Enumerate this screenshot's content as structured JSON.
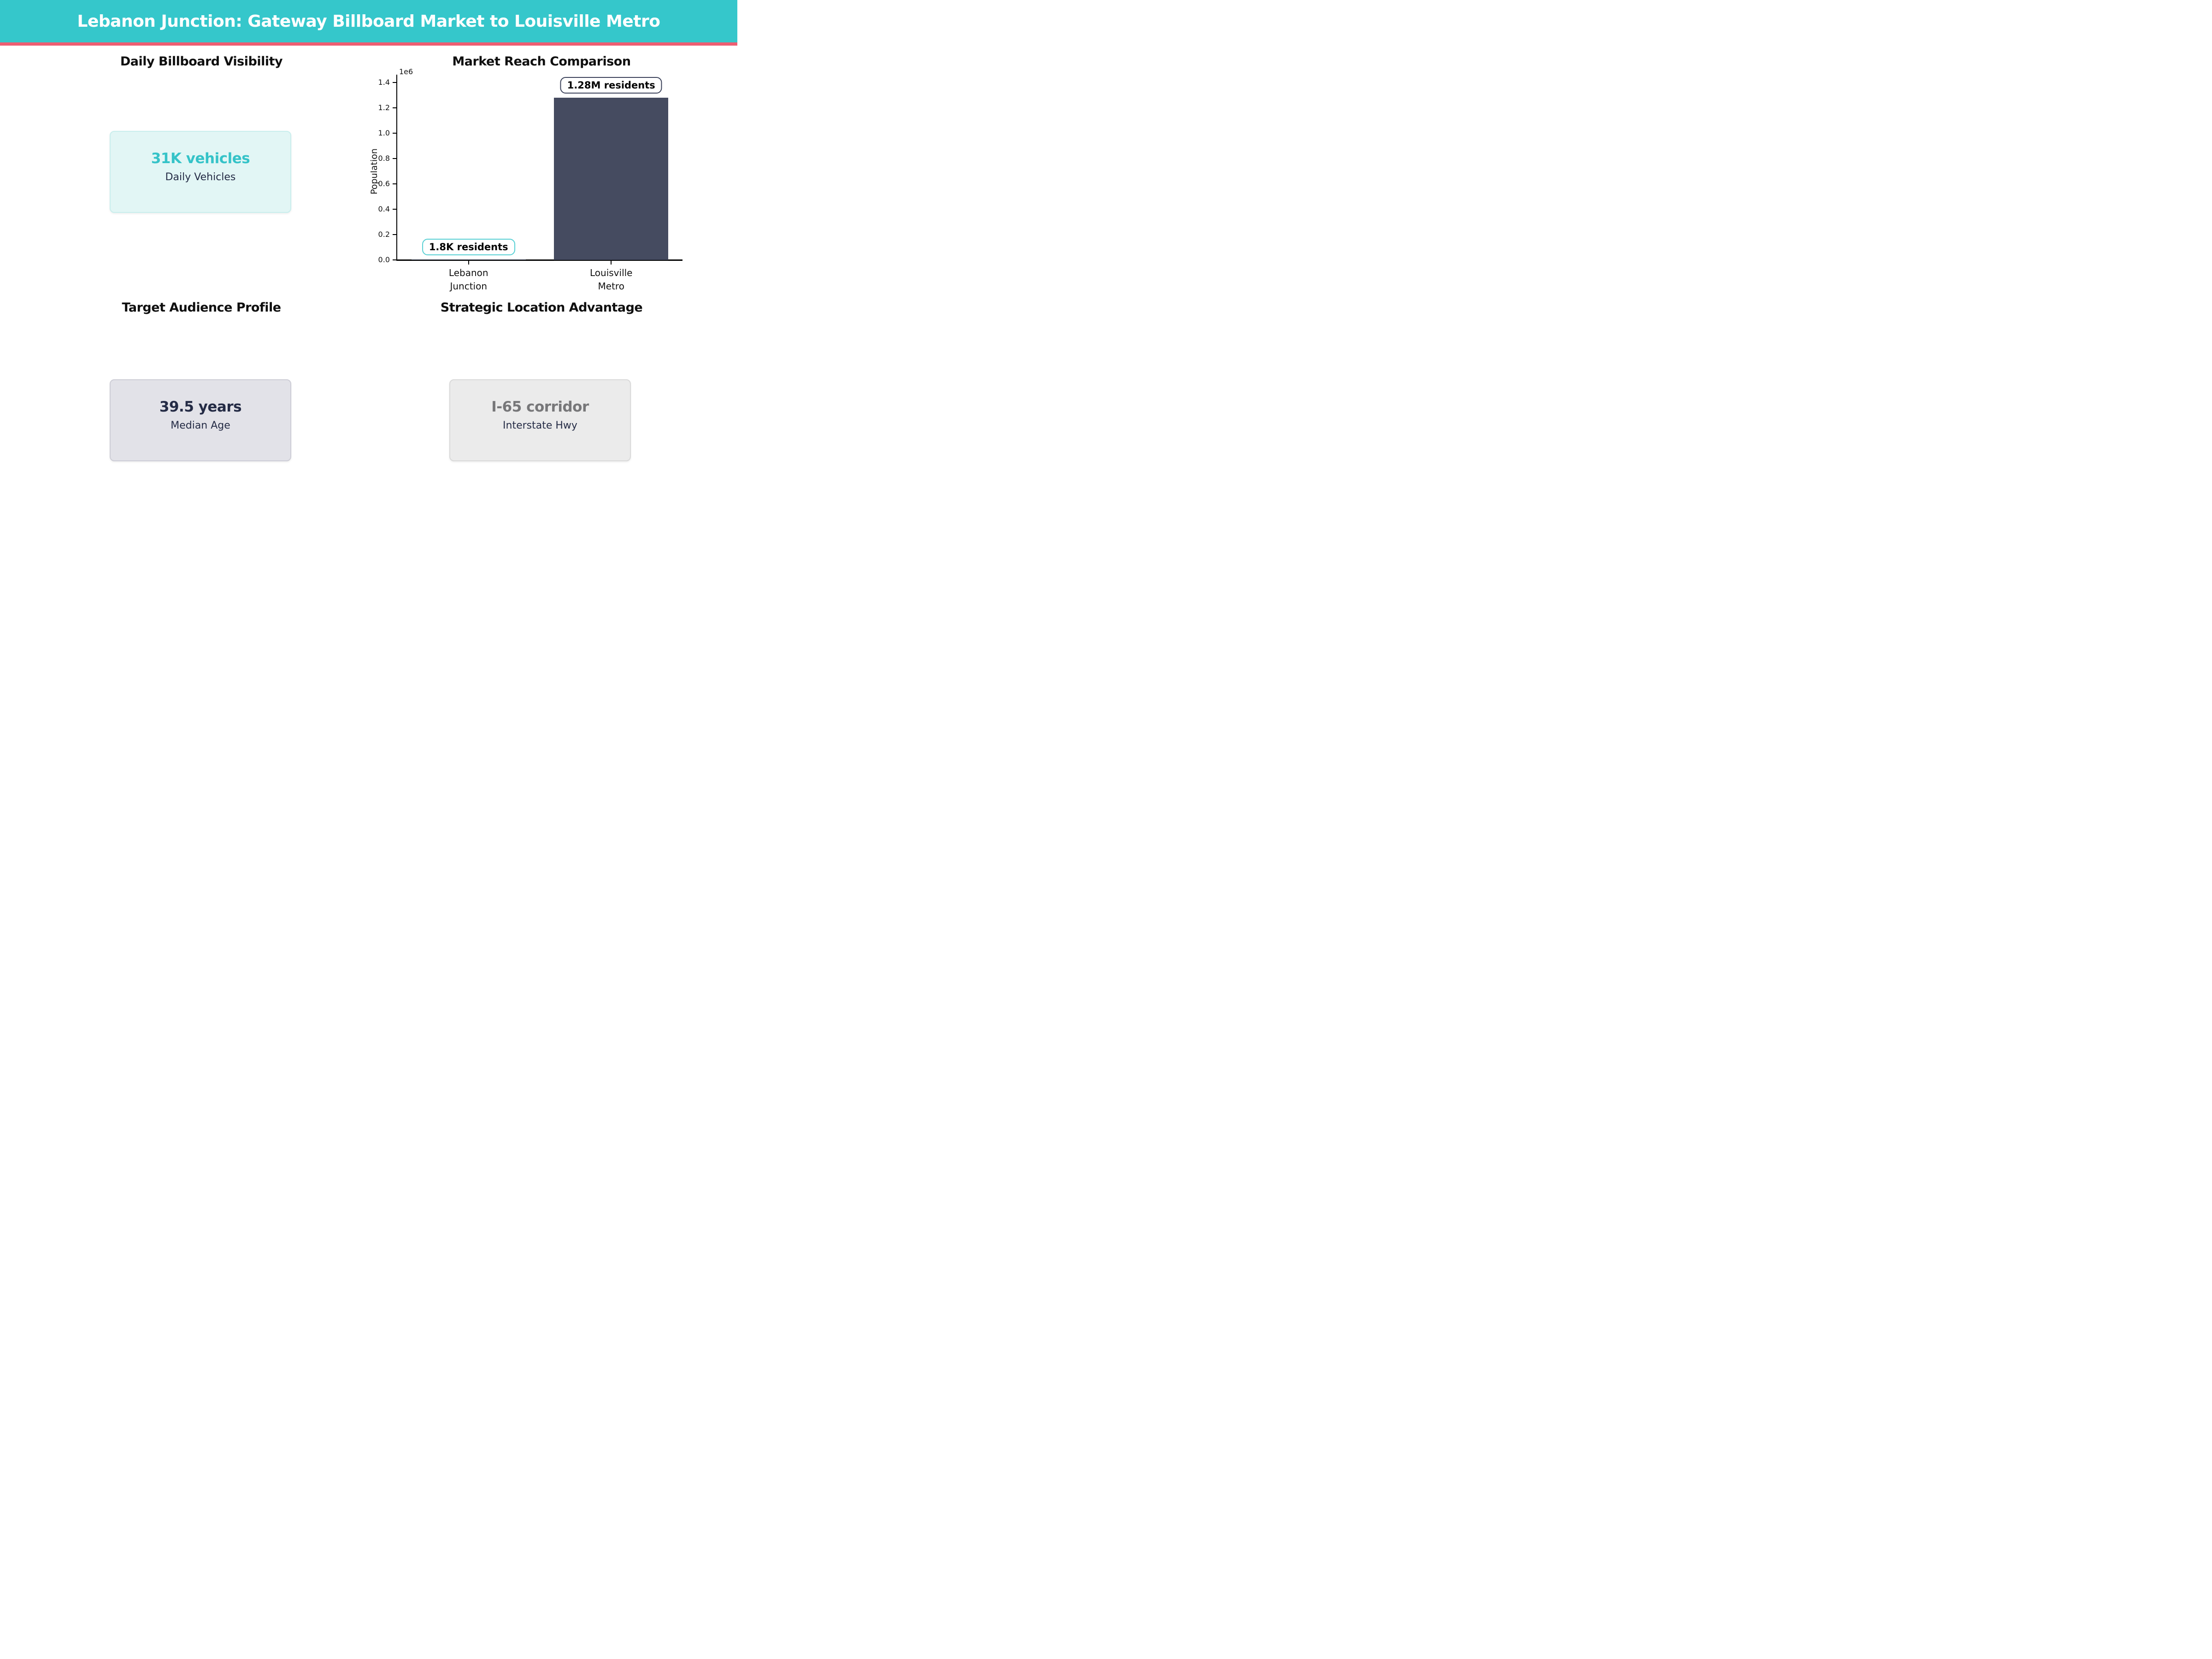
{
  "header": {
    "title": "Lebanon Junction: Gateway Billboard Market to Louisville Metro",
    "bg_color": "#35c7cb",
    "accent_color": "#ed5e72"
  },
  "quadrants": {
    "visibility": {
      "heading": "Daily Billboard Visibility",
      "card": {
        "value": "31K vehicles",
        "label": "Daily Vehicles",
        "value_color": "#35c3c8",
        "bg": "#e2f6f5",
        "border": "#c9eeed"
      }
    },
    "market": {
      "heading": "Market Reach Comparison"
    },
    "audience": {
      "heading": "Target Audience Profile",
      "card": {
        "value": "39.5 years",
        "label": "Median Age",
        "value_color": "#242b45",
        "bg": "#e2e2e8",
        "border": "#cdcdd6"
      }
    },
    "location": {
      "heading": "Strategic Location Advantage",
      "card": {
        "value": "I-65 corridor",
        "label": "Interstate Hwy",
        "value_color": "#777779",
        "bg": "#ebebeb",
        "border": "#d9d9d9"
      }
    }
  },
  "chart_data": {
    "type": "bar",
    "title": "Market Reach Comparison",
    "categories": [
      [
        "Lebanon",
        "Junction"
      ],
      [
        "Louisville",
        "Metro"
      ]
    ],
    "values": [
      1800,
      1280000
    ],
    "value_labels": [
      "1.8K residents",
      "1.28M residents"
    ],
    "annotation_border_colors": [
      "#58d0d4",
      "#3b425a"
    ],
    "bar_color": "#454b60",
    "ylabel": "Population",
    "xlabel": "",
    "ylim": [
      0,
      1400000
    ],
    "ytick_step": 200000,
    "offset_text": "1e6",
    "grid": false,
    "legend": null
  }
}
